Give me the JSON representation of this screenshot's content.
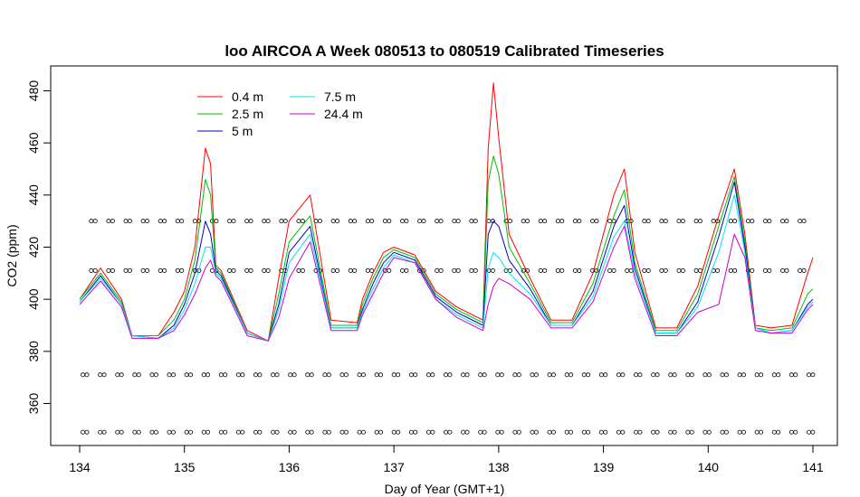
{
  "chart_data": {
    "type": "line",
    "title": "loo AIRCOA A  Week 080513 to 080519  Calibrated Timeseries",
    "xlabel": "Day of Year (GMT+1)",
    "ylabel": "CO2 (ppm)",
    "xlim": [
      134,
      141
    ],
    "ylim": [
      350,
      480
    ],
    "xticks": [
      134,
      135,
      136,
      137,
      138,
      139,
      140,
      141
    ],
    "yticks": [
      360,
      380,
      400,
      420,
      440,
      460,
      480
    ],
    "grid": false,
    "legend": "top-left",
    "series": [
      {
        "name": "0.4 m",
        "color": "#ff0000",
        "x": [
          134.0,
          134.2,
          134.4,
          134.5,
          134.75,
          134.9,
          135.0,
          135.1,
          135.2,
          135.25,
          135.3,
          135.35,
          135.6,
          135.8,
          135.9,
          136.0,
          136.2,
          136.4,
          136.65,
          136.7,
          136.8,
          136.9,
          137.0,
          137.2,
          137.4,
          137.6,
          137.85,
          137.9,
          137.95,
          138.0,
          138.1,
          138.3,
          138.5,
          138.7,
          138.9,
          139.1,
          139.2,
          139.3,
          139.5,
          139.7,
          139.9,
          140.1,
          140.25,
          140.35,
          140.45,
          140.6,
          140.8,
          140.95,
          141.0
        ],
        "y": [
          400,
          412,
          400,
          386,
          386,
          395,
          403,
          420,
          458,
          452,
          413,
          411,
          388,
          384,
          408,
          430,
          440,
          392,
          391,
          400,
          410,
          418,
          420,
          417,
          403,
          397,
          392,
          458,
          483,
          462,
          425,
          408,
          392,
          392,
          410,
          440,
          450,
          418,
          389,
          389,
          405,
          432,
          450,
          425,
          390,
          389,
          390,
          410,
          416
        ]
      },
      {
        "name": "2.5 m",
        "color": "#00c000",
        "x": [
          134.0,
          134.2,
          134.4,
          134.5,
          134.75,
          134.9,
          135.0,
          135.1,
          135.2,
          135.25,
          135.3,
          135.35,
          135.6,
          135.8,
          135.9,
          136.0,
          136.2,
          136.4,
          136.65,
          136.7,
          136.8,
          136.9,
          137.0,
          137.2,
          137.4,
          137.6,
          137.85,
          137.9,
          137.95,
          138.0,
          138.1,
          138.3,
          138.5,
          138.7,
          138.9,
          139.1,
          139.2,
          139.3,
          139.5,
          139.7,
          139.9,
          140.1,
          140.25,
          140.35,
          140.45,
          140.6,
          140.8,
          140.95,
          141.0
        ],
        "y": [
          400,
          410,
          399,
          386,
          386,
          392,
          400,
          415,
          446,
          440,
          412,
          410,
          387,
          384,
          402,
          422,
          432,
          390,
          390,
          398,
          408,
          416,
          419,
          416,
          402,
          396,
          391,
          445,
          455,
          448,
          420,
          406,
          391,
          391,
          406,
          432,
          442,
          414,
          388,
          388,
          402,
          428,
          447,
          422,
          389,
          388,
          389,
          402,
          404
        ]
      },
      {
        "name": "5 m",
        "color": "#0000cc",
        "x": [
          134.0,
          134.2,
          134.4,
          134.5,
          134.75,
          134.9,
          135.0,
          135.1,
          135.2,
          135.25,
          135.3,
          135.35,
          135.6,
          135.8,
          135.9,
          136.0,
          136.2,
          136.4,
          136.65,
          136.7,
          136.8,
          136.9,
          137.0,
          137.2,
          137.4,
          137.6,
          137.85,
          137.9,
          137.95,
          138.0,
          138.1,
          138.3,
          138.5,
          138.7,
          138.9,
          139.1,
          139.2,
          139.3,
          139.5,
          139.7,
          139.9,
          140.1,
          140.25,
          140.35,
          140.45,
          140.6,
          140.8,
          140.95,
          141.0
        ],
        "y": [
          399,
          409,
          398,
          386,
          385,
          390,
          398,
          410,
          430,
          425,
          411,
          409,
          387,
          384,
          398,
          418,
          428,
          389,
          389,
          396,
          406,
          414,
          418,
          415,
          401,
          395,
          390,
          425,
          430,
          428,
          415,
          404,
          390,
          390,
          403,
          428,
          436,
          412,
          387,
          387,
          399,
          424,
          445,
          420,
          389,
          387,
          388,
          398,
          400
        ]
      },
      {
        "name": "7.5 m",
        "color": "#00e5ee",
        "x": [
          134.0,
          134.2,
          134.4,
          134.5,
          134.75,
          134.9,
          135.0,
          135.1,
          135.2,
          135.25,
          135.3,
          135.35,
          135.6,
          135.8,
          135.9,
          136.0,
          136.2,
          136.4,
          136.65,
          136.7,
          136.8,
          136.9,
          137.0,
          137.2,
          137.4,
          137.6,
          137.85,
          137.9,
          137.95,
          138.0,
          138.1,
          138.3,
          138.5,
          138.7,
          138.9,
          139.1,
          139.2,
          139.3,
          139.5,
          139.7,
          139.9,
          140.1,
          140.25,
          140.35,
          140.45,
          140.6,
          140.8,
          140.95,
          141.0
        ],
        "y": [
          399,
          408,
          398,
          386,
          385,
          389,
          396,
          406,
          420,
          420,
          410,
          408,
          387,
          384,
          396,
          414,
          425,
          389,
          389,
          395,
          404,
          412,
          417,
          414,
          400,
          394,
          389,
          412,
          418,
          416,
          410,
          402,
          390,
          390,
          401,
          424,
          430,
          410,
          387,
          387,
          397,
          418,
          440,
          418,
          389,
          387,
          388,
          397,
          399
        ]
      },
      {
        "name": "24.4 m",
        "color": "#cc00cc",
        "x": [
          134.0,
          134.2,
          134.4,
          134.5,
          134.75,
          134.9,
          135.0,
          135.1,
          135.2,
          135.25,
          135.3,
          135.35,
          135.6,
          135.8,
          135.9,
          136.0,
          136.2,
          136.4,
          136.65,
          136.7,
          136.8,
          136.9,
          137.0,
          137.2,
          137.4,
          137.6,
          137.85,
          137.9,
          137.95,
          138.0,
          138.1,
          138.3,
          138.5,
          138.7,
          138.9,
          139.1,
          139.2,
          139.3,
          139.5,
          139.7,
          139.9,
          140.1,
          140.25,
          140.35,
          140.45,
          140.6,
          140.8,
          140.95,
          141.0
        ],
        "y": [
          398,
          407,
          397,
          385,
          385,
          388,
          394,
          402,
          412,
          415,
          409,
          407,
          386,
          384,
          393,
          408,
          422,
          388,
          388,
          394,
          402,
          410,
          416,
          414,
          400,
          393,
          388,
          398,
          405,
          408,
          406,
          400,
          389,
          389,
          399,
          420,
          428,
          408,
          386,
          386,
          395,
          398,
          425,
          416,
          388,
          387,
          387,
          396,
          398
        ]
      }
    ],
    "flag_rows": [
      {
        "y": 430,
        "x_start": 134.13,
        "x_end": 141.0
      },
      {
        "y": 411,
        "x_start": 134.13,
        "x_end": 141.0
      },
      {
        "y": 371,
        "x_start": 134.05,
        "x_end": 141.0
      },
      {
        "y": 349,
        "x_start": 134.05,
        "x_end": 141.0
      }
    ]
  }
}
